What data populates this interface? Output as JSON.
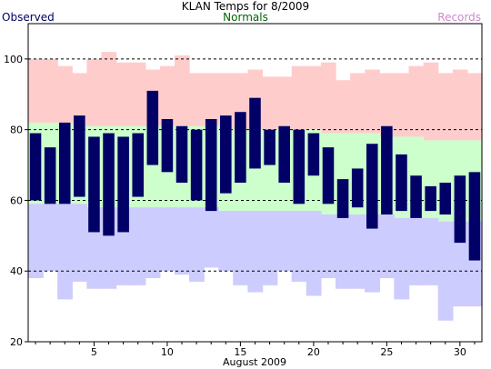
{
  "chart_data": {
    "type": "bar",
    "title": "KLAN Temps for 8/2009",
    "xlabel": "August 2009",
    "ylabel": "",
    "xlim": [
      0.5,
      31.5
    ],
    "ylim": [
      20,
      110
    ],
    "x_ticks": [
      5,
      10,
      15,
      20,
      25,
      30
    ],
    "y_ticks": [
      20,
      40,
      60,
      80,
      100
    ],
    "dashed_gridlines": [
      40,
      60,
      80,
      100
    ],
    "legend": {
      "observed": "Observed",
      "normals": "Normals",
      "records": "Records",
      "placement": "top"
    },
    "colors": {
      "observed": "#000066",
      "normals_text": "#006600",
      "records_text": "#cc88cc",
      "record_band": "#ffcccc",
      "normal_high_band": "#ccffcc",
      "normal_low_band": "#ccccff"
    },
    "days": [
      1,
      2,
      3,
      4,
      5,
      6,
      7,
      8,
      9,
      10,
      11,
      12,
      13,
      14,
      15,
      16,
      17,
      18,
      19,
      20,
      21,
      22,
      23,
      24,
      25,
      26,
      27,
      28,
      29,
      30,
      31
    ],
    "series": [
      {
        "name": "Observed",
        "key": "observed_high",
        "values": [
          79,
          75,
          82,
          84,
          78,
          79,
          78,
          79,
          91,
          83,
          81,
          80,
          83,
          84,
          85,
          89,
          80,
          81,
          80,
          79,
          75,
          66,
          69,
          76,
          81,
          73,
          67,
          64,
          65,
          67,
          68
        ]
      },
      {
        "name": "Observed",
        "key": "observed_low",
        "values": [
          60,
          59,
          59,
          61,
          51,
          50,
          51,
          61,
          70,
          68,
          65,
          60,
          57,
          62,
          65,
          69,
          70,
          65,
          59,
          67,
          59,
          55,
          58,
          52,
          56,
          57,
          55,
          57,
          56,
          48,
          43
        ]
      },
      {
        "name": "Normals",
        "key": "normal_high",
        "values": [
          82,
          82,
          82,
          81,
          81,
          81,
          81,
          81,
          81,
          81,
          81,
          81,
          81,
          80,
          80,
          80,
          80,
          80,
          80,
          80,
          79,
          79,
          79,
          79,
          78,
          78,
          78,
          77,
          77,
          77,
          77
        ]
      },
      {
        "name": "Normals",
        "key": "normal_low",
        "values": [
          59,
          59,
          59,
          59,
          58,
          58,
          58,
          58,
          58,
          58,
          58,
          58,
          58,
          57,
          57,
          57,
          57,
          57,
          57,
          57,
          56,
          56,
          56,
          56,
          56,
          55,
          55,
          55,
          54,
          54,
          54
        ]
      },
      {
        "name": "Records",
        "key": "record_high",
        "values": [
          100,
          100,
          98,
          96,
          100,
          102,
          99,
          99,
          97,
          98,
          101,
          96,
          96,
          96,
          96,
          97,
          95,
          95,
          98,
          98,
          99,
          94,
          96,
          97,
          96,
          96,
          98,
          99,
          96,
          97,
          96
        ]
      },
      {
        "name": "Records",
        "key": "record_low",
        "values": [
          38,
          40,
          32,
          37,
          35,
          35,
          36,
          36,
          38,
          40,
          39,
          37,
          41,
          40,
          36,
          34,
          36,
          40,
          37,
          33,
          38,
          35,
          35,
          34,
          38,
          32,
          36,
          36,
          26,
          30,
          30
        ]
      }
    ]
  }
}
